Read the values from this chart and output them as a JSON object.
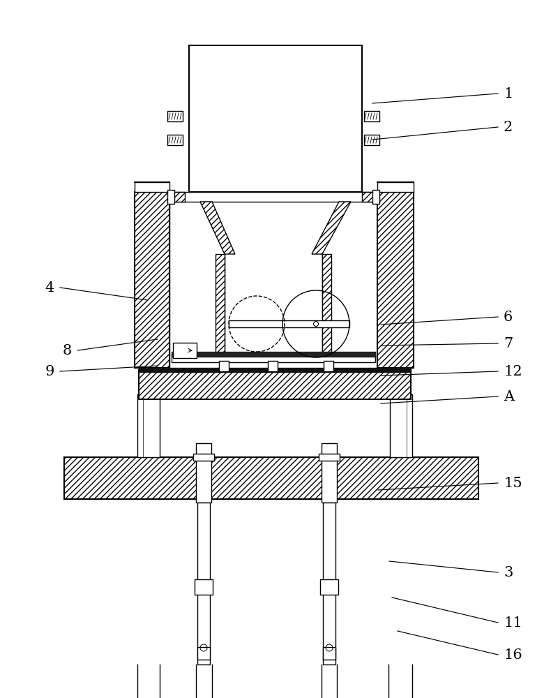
{
  "bg": "#ffffff",
  "lc": "#000000",
  "lw": 1.0,
  "lw_thick": 1.5,
  "annotations": [
    [
      "16",
      722,
      62,
      570,
      96,
      "right"
    ],
    [
      "11",
      722,
      108,
      562,
      144,
      "right"
    ],
    [
      "3",
      722,
      180,
      558,
      196,
      "right"
    ],
    [
      "15",
      722,
      308,
      542,
      298,
      "right"
    ],
    [
      "A",
      722,
      432,
      546,
      422,
      "right"
    ],
    [
      "12",
      722,
      468,
      546,
      462,
      "right"
    ],
    [
      "7",
      722,
      508,
      546,
      505,
      "right"
    ],
    [
      "6",
      722,
      546,
      546,
      535,
      "right"
    ],
    [
      "9",
      78,
      468,
      226,
      476,
      "left"
    ],
    [
      "8",
      103,
      498,
      226,
      514,
      "left"
    ],
    [
      "4",
      78,
      588,
      212,
      570,
      "left"
    ],
    [
      "2",
      722,
      818,
      534,
      800,
      "right"
    ],
    [
      "1",
      722,
      866,
      534,
      852,
      "right"
    ]
  ]
}
